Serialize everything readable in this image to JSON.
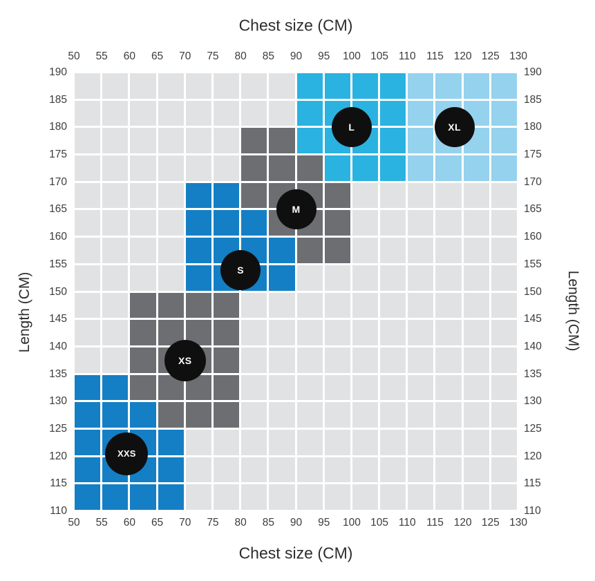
{
  "chart_data": {
    "type": "heatmap",
    "title": "Chest size (CM)",
    "xlabel_top": "Chest size (CM)",
    "xlabel_bottom": "Chest size (CM)",
    "ylabel_left": "Length (CM)",
    "ylabel_right": "Length (CM)",
    "x_ticks": [
      50,
      55,
      60,
      65,
      70,
      75,
      80,
      85,
      90,
      95,
      100,
      105,
      110,
      115,
      120,
      125,
      130
    ],
    "y_ticks": [
      190,
      185,
      180,
      175,
      170,
      165,
      160,
      155,
      150,
      145,
      140,
      135,
      130,
      125,
      120,
      115,
      110
    ],
    "x_range": [
      50,
      130
    ],
    "y_range": [
      110,
      190
    ],
    "cell_step_cm": 5,
    "grid_on": false,
    "legend_position": "none",
    "palette": {
      "e": "#e1e2e3",
      "b": "#147fc4",
      "d": "#6d6e71",
      "c": "#2ab2e1",
      "l": "#95d2ee"
    },
    "palette_legend": {
      "e": "empty",
      "b": "XXS-and-S-blue",
      "d": "XS-and-M-dark-gray",
      "c": "L-cyan",
      "l": "XL-light-blue"
    },
    "grid_rows_top_to_bottom": [
      "eeeeeeeeccccllll",
      "eeeeeeeeccccllll",
      "eeeeeeddccccllll",
      "eeeeeedddcccllll",
      "eeeebbddddeeeeee",
      "eeeebbbdddeeeeee",
      "eeeebbbbddeeeeee",
      "eeeebbbbeeeeeeee",
      "eeddddeeeeeeeeee",
      "eeddddeeeeeeeeee",
      "eeddddeeeeeeeeee",
      "bbddddeeeeeeeeee",
      "bbbdddeeeeeeeeee",
      "bbbbeeeeeeeeeeee",
      "bbbbeeeeeeeeeeee",
      "bbbbeeeeeeeeeeee"
    ],
    "size_labels": [
      {
        "label": "XXS",
        "chest": 59.5,
        "length": 120.5
      },
      {
        "label": "XS",
        "chest": 70,
        "length": 137.5
      },
      {
        "label": "S",
        "chest": 80,
        "length": 154
      },
      {
        "label": "M",
        "chest": 90,
        "length": 165
      },
      {
        "label": "L",
        "chest": 100,
        "length": 180
      },
      {
        "label": "XL",
        "chest": 118.5,
        "length": 180
      }
    ],
    "badge_colors": {
      "background": "#0f0f0f",
      "text": "#ffffff"
    }
  }
}
